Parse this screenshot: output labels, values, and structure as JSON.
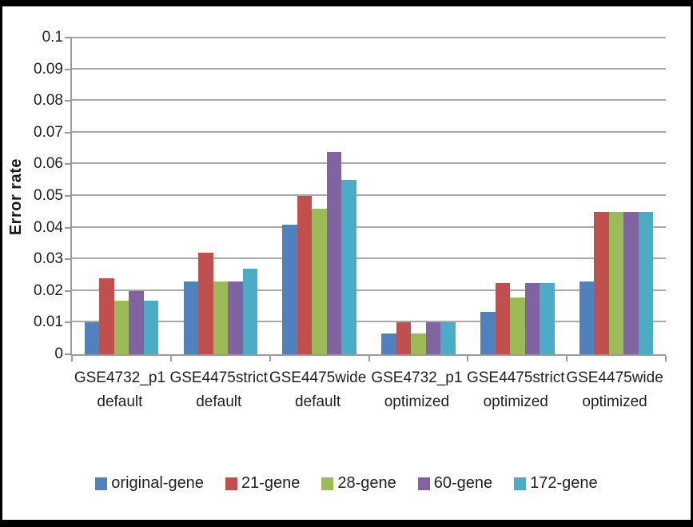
{
  "chart_data": {
    "type": "bar",
    "title": "",
    "xlabel": "",
    "ylabel": "Error rate",
    "ylim": [
      0,
      0.1
    ],
    "ytick_step": 0.01,
    "yticks": [
      "0",
      "0.01",
      "0.02",
      "0.03",
      "0.04",
      "0.05",
      "0.06",
      "0.07",
      "0.08",
      "0.09",
      "0.1"
    ],
    "grid": true,
    "legend_position": "bottom",
    "axis_color": "#9b9b9b",
    "grid_color": "#a8a8a8",
    "frame_color": "#000000",
    "categories": [
      {
        "line1": "GSE4732_p1",
        "line2": "default"
      },
      {
        "line1": "GSE4475strict",
        "line2": "default"
      },
      {
        "line1": "GSE4475wide",
        "line2": "default"
      },
      {
        "line1": "GSE4732_p1",
        "line2": "optimized"
      },
      {
        "line1": "GSE4475strict",
        "line2": "optimized"
      },
      {
        "line1": "GSE4475wide",
        "line2": "optimized"
      }
    ],
    "series": [
      {
        "name": "original-gene",
        "color": "#4F81BD",
        "values": [
          0.01,
          0.023,
          0.041,
          0.0065,
          0.0135,
          0.023
        ]
      },
      {
        "name": "21-gene",
        "color": "#C0504D",
        "values": [
          0.024,
          0.032,
          0.05,
          0.01,
          0.0225,
          0.045
        ]
      },
      {
        "name": "28-gene",
        "color": "#9BBB59",
        "values": [
          0.017,
          0.023,
          0.046,
          0.0065,
          0.018,
          0.045
        ]
      },
      {
        "name": "60-gene",
        "color": "#8064A2",
        "values": [
          0.02,
          0.023,
          0.064,
          0.01,
          0.0225,
          0.045
        ]
      },
      {
        "name": "172-gene",
        "color": "#4BACC6",
        "values": [
          0.017,
          0.027,
          0.055,
          0.01,
          0.0225,
          0.045
        ]
      }
    ]
  }
}
